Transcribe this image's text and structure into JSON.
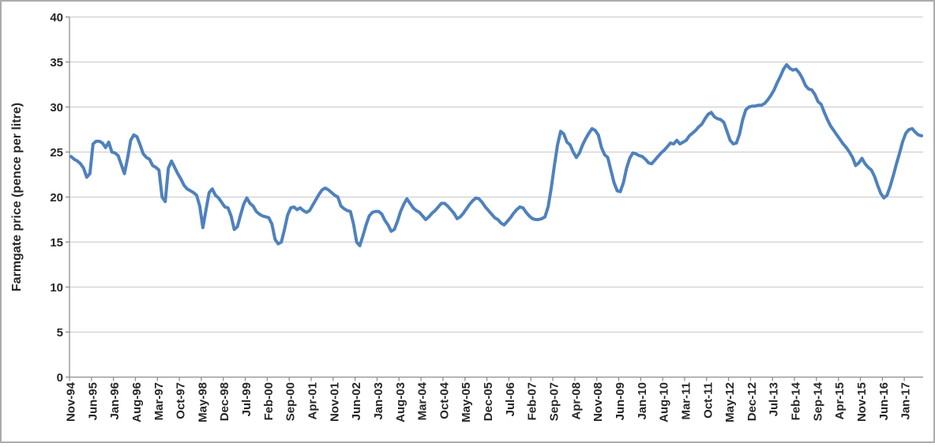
{
  "chart_data": {
    "type": "line",
    "title": "",
    "ylabel": "Farmgate price (pence per litre)",
    "xlabel": "",
    "ylim": [
      0,
      40
    ],
    "y_ticks": [
      0,
      5,
      10,
      15,
      20,
      25,
      30,
      35,
      40
    ],
    "x_start": "Nov-94",
    "x_end": "Jun-17",
    "x_frequency": "monthly",
    "x_tick_every": 7,
    "x_tick_labels": [
      "Nov-94",
      "Jun-95",
      "Jan-96",
      "Aug-96",
      "Mar-97",
      "Oct-97",
      "May-98",
      "Dec-98",
      "Jul-99",
      "Feb-00",
      "Sep-00",
      "Apr-01",
      "Nov-01",
      "Jun-02",
      "Jan-03",
      "Aug-03",
      "Mar-04",
      "Oct-04",
      "May-05",
      "Dec-05",
      "Jul-06",
      "Feb-07",
      "Sep-07",
      "Apr-08",
      "Nov-08",
      "Jun-09",
      "Jan-10",
      "Aug-10",
      "Mar-11",
      "Oct-11",
      "May-12",
      "Dec-12",
      "Jul-13",
      "Feb-14",
      "Sep-14",
      "Apr-15",
      "Nov-15",
      "Jun-16",
      "Jan-17"
    ],
    "grid": "horizontal",
    "legend": "none",
    "line_color": "#4F81BD",
    "line_width": 4,
    "gridline_color": "#C9C9C9",
    "axis_color": "#8E8E8E",
    "label_color": "#262626",
    "background": "#FFFFFF",
    "frame_color": "#ABABAB",
    "values": [
      24.5,
      24.2,
      24.0,
      23.7,
      23.2,
      22.2,
      22.6,
      25.9,
      26.2,
      26.2,
      26.0,
      25.5,
      26.1,
      25.0,
      24.9,
      24.6,
      23.6,
      22.6,
      24.3,
      26.3,
      26.9,
      26.7,
      25.8,
      24.8,
      24.4,
      24.2,
      23.5,
      23.3,
      23.0,
      20.0,
      19.5,
      23.2,
      24.0,
      23.3,
      22.6,
      22.0,
      21.3,
      20.9,
      20.7,
      20.5,
      20.2,
      19.0,
      16.6,
      18.6,
      20.5,
      20.9,
      20.2,
      19.9,
      19.4,
      18.9,
      18.8,
      17.9,
      16.4,
      16.7,
      18.0,
      19.2,
      19.9,
      19.3,
      19.0,
      18.4,
      18.1,
      17.9,
      17.8,
      17.7,
      17.0,
      15.3,
      14.8,
      15.0,
      16.4,
      18.0,
      18.8,
      18.9,
      18.6,
      18.8,
      18.5,
      18.3,
      18.5,
      19.1,
      19.7,
      20.3,
      20.8,
      21.0,
      20.8,
      20.5,
      20.2,
      20.0,
      19.0,
      18.7,
      18.5,
      18.4,
      17.0,
      15.0,
      14.6,
      15.7,
      16.9,
      17.9,
      18.3,
      18.4,
      18.4,
      18.1,
      17.4,
      16.9,
      16.2,
      16.4,
      17.3,
      18.4,
      19.2,
      19.8,
      19.3,
      18.8,
      18.5,
      18.3,
      17.9,
      17.5,
      17.8,
      18.2,
      18.5,
      18.9,
      19.3,
      19.3,
      19.0,
      18.6,
      18.2,
      17.6,
      17.8,
      18.2,
      18.7,
      19.2,
      19.6,
      19.9,
      19.8,
      19.4,
      18.9,
      18.5,
      18.1,
      17.7,
      17.5,
      17.1,
      16.9,
      17.3,
      17.7,
      18.2,
      18.6,
      18.9,
      18.8,
      18.3,
      17.9,
      17.6,
      17.5,
      17.5,
      17.6,
      17.8,
      18.9,
      21.0,
      23.5,
      25.8,
      27.3,
      27.0,
      26.1,
      25.8,
      25.0,
      24.4,
      24.9,
      25.8,
      26.5,
      27.1,
      27.6,
      27.4,
      26.9,
      25.5,
      24.7,
      24.4,
      23.0,
      21.6,
      20.7,
      20.6,
      21.6,
      23.2,
      24.3,
      24.9,
      24.8,
      24.6,
      24.5,
      24.2,
      23.8,
      23.7,
      24.1,
      24.5,
      24.9,
      25.2,
      25.6,
      26.0,
      25.9,
      26.3,
      25.9,
      26.1,
      26.3,
      26.8,
      27.1,
      27.4,
      27.8,
      28.1,
      28.7,
      29.2,
      29.4,
      28.9,
      28.7,
      28.6,
      28.3,
      27.3,
      26.3,
      25.9,
      26.0,
      27.0,
      28.6,
      29.7,
      30.0,
      30.1,
      30.1,
      30.2,
      30.2,
      30.4,
      30.8,
      31.3,
      31.9,
      32.7,
      33.4,
      34.2,
      34.7,
      34.3,
      34.1,
      34.2,
      33.8,
      33.2,
      32.4,
      32.0,
      31.9,
      31.4,
      30.6,
      30.3,
      29.4,
      28.6,
      27.9,
      27.4,
      26.9,
      26.4,
      25.9,
      25.5,
      25.0,
      24.4,
      23.5,
      23.8,
      24.3,
      23.7,
      23.3,
      23.0,
      22.3,
      21.3,
      20.4,
      19.9,
      20.2,
      21.2,
      22.4,
      23.7,
      24.9,
      26.2,
      27.1,
      27.5,
      27.6,
      27.2,
      26.9,
      26.8
    ]
  }
}
